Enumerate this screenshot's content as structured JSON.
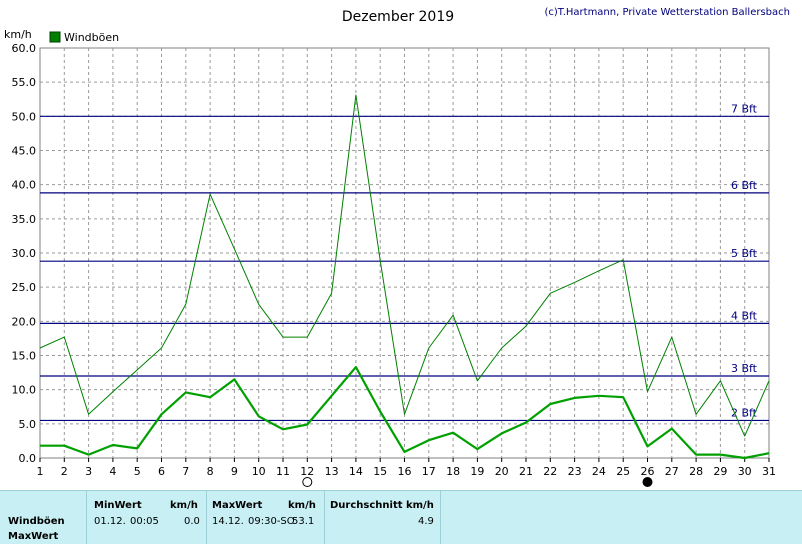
{
  "unit_label": "km/h",
  "chart_data": {
    "type": "line",
    "title": "Dezember 2019",
    "credit": "(c)T.Hartmann, Private Wetterstation Ballersbach",
    "legend": [
      "Windböen"
    ],
    "legend_color": "#008000",
    "legend_placement": "top-left",
    "ylabel": "km/h",
    "ylim": [
      0,
      60
    ],
    "y_ticks": [
      "0.0",
      "5.0",
      "10.0",
      "15.0",
      "20.0",
      "25.0",
      "30.0",
      "35.0",
      "40.0",
      "45.0",
      "50.0",
      "55.0",
      "60.0"
    ],
    "x": [
      1,
      2,
      3,
      4,
      5,
      6,
      7,
      8,
      9,
      10,
      11,
      12,
      13,
      14,
      15,
      16,
      17,
      18,
      19,
      20,
      21,
      22,
      23,
      24,
      25,
      26,
      27,
      28,
      29,
      30,
      31
    ],
    "x_ticks": [
      "1",
      "2",
      "3",
      "4",
      "5",
      "6",
      "7",
      "8",
      "9",
      "10",
      "11",
      "12",
      "13",
      "14",
      "15",
      "16",
      "17",
      "18",
      "19",
      "20",
      "21",
      "22",
      "23",
      "24",
      "25",
      "26",
      "27",
      "28",
      "29",
      "30",
      "31"
    ],
    "grid": true,
    "series": [
      {
        "style": "thin",
        "color": "#008000",
        "values": [
          16.1,
          17.7,
          6.4,
          9.7,
          12.9,
          16.1,
          22.5,
          38.6,
          30.6,
          22.5,
          17.7,
          17.7,
          24.1,
          53.1,
          28.9,
          6.4,
          16.1,
          20.9,
          11.3,
          16.1,
          19.3,
          24.1,
          25.7,
          27.4,
          29.0,
          9.7,
          17.7,
          6.4,
          11.3,
          3.2,
          11.3
        ]
      },
      {
        "style": "thick",
        "color": "#00a000",
        "values": [
          1.8,
          1.8,
          0.5,
          1.9,
          1.4,
          6.4,
          9.6,
          8.9,
          11.5,
          6.1,
          4.2,
          4.9,
          9.1,
          13.3,
          6.8,
          0.9,
          2.6,
          3.7,
          1.3,
          3.6,
          5.2,
          7.9,
          8.8,
          9.1,
          8.9,
          1.7,
          4.3,
          0.5,
          0.5,
          0.0,
          0.7
        ]
      }
    ],
    "reference_lines": [
      {
        "value": 5.5,
        "label": "2 Bft"
      },
      {
        "value": 12.0,
        "label": "3 Bft"
      },
      {
        "value": 19.7,
        "label": "4 Bft"
      },
      {
        "value": 28.8,
        "label": "5 Bft"
      },
      {
        "value": 38.8,
        "label": "6 Bft"
      },
      {
        "value": 50.0,
        "label": "7 Bft"
      }
    ],
    "reference_color": "#000080",
    "moon_markers": [
      {
        "day": 12,
        "phase": "full"
      },
      {
        "day": 26,
        "phase": "new"
      }
    ]
  },
  "stats": {
    "row_labels": [
      "Windböen",
      "MaxWert"
    ],
    "min": {
      "header": "MinWert",
      "unit": "km/h",
      "date": "01.12.",
      "time": "00:05",
      "value": "0.0"
    },
    "max": {
      "header": "MaxWert",
      "unit": "km/h",
      "date": "14.12.",
      "time": "09:30-SO",
      "value": "53.1"
    },
    "avg": {
      "header": "Durchschnitt km/h",
      "value": "4.9"
    }
  }
}
